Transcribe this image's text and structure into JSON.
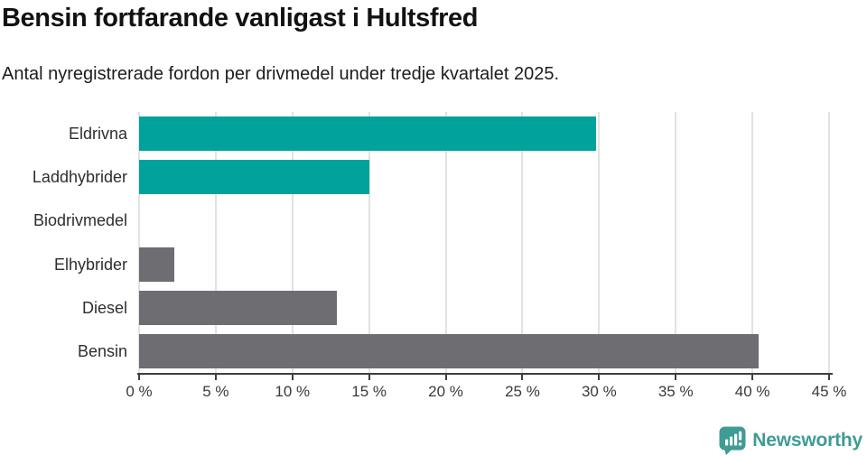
{
  "header": {
    "title": "Bensin fortfarande vanligast i Hultsfred",
    "subtitle": "Antal nyregistrerade fordon per drivmedel under tredje kvartalet 2025."
  },
  "colors": {
    "highlight_teal": "#00a29b",
    "default_gray": "#6d6d72",
    "logo_teal": "#3f9c95",
    "axis": "#3f3f3f",
    "gridline": "#e2e2e2"
  },
  "chart_data": {
    "type": "bar",
    "orientation": "horizontal",
    "title": "Bensin fortfarande vanligast i Hultsfred",
    "subtitle": "Antal nyregistrerade fordon per drivmedel under tredje kvartalet 2025.",
    "categories": [
      "Eldrivna",
      "Laddhybrider",
      "Biodrivmedel",
      "Elhybrider",
      "Diesel",
      "Bensin"
    ],
    "values": [
      29.8,
      15.0,
      0,
      2.3,
      12.9,
      40.4
    ],
    "unit": "%",
    "bar_colors": [
      "#00a29b",
      "#00a29b",
      "#6d6d72",
      "#6d6d72",
      "#6d6d72",
      "#6d6d72"
    ],
    "xlim": [
      0,
      45
    ],
    "x_tick_values": [
      0,
      5,
      10,
      15,
      20,
      25,
      30,
      35,
      40,
      45
    ],
    "x_tick_labels": [
      "0 %",
      "5 %",
      "10 %",
      "15 %",
      "20 %",
      "25 %",
      "30 %",
      "35 %",
      "40 %",
      "45 %"
    ],
    "grid": true,
    "legend": false
  },
  "branding": {
    "logo_text": "Newsworthy",
    "logo_icon": "speech-bubble-bar-chart-icon"
  }
}
